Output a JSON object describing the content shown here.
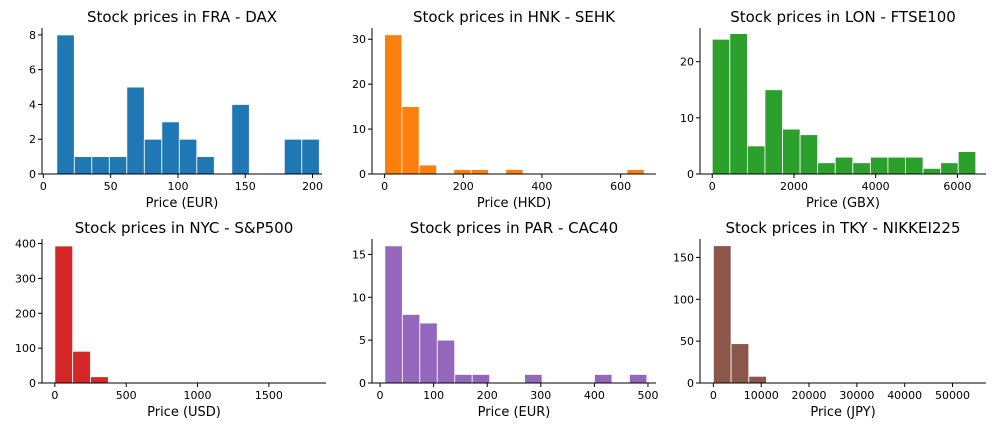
{
  "chart_data": [
    {
      "type": "bar",
      "title": "Stock prices in FRA - DAX",
      "xlabel": "Price (EUR)",
      "ylabel": "",
      "color": "#1f77b4",
      "xlim": [
        -1,
        207
      ],
      "ylim": [
        0,
        8.4
      ],
      "xticks": [
        0,
        50,
        100,
        150,
        200
      ],
      "yticks": [
        0,
        2,
        4,
        6,
        8
      ],
      "bins": [
        {
          "x0": 10,
          "x1": 23,
          "count": 8
        },
        {
          "x0": 23,
          "x1": 36,
          "count": 1
        },
        {
          "x0": 36,
          "x1": 49,
          "count": 1
        },
        {
          "x0": 49,
          "x1": 62,
          "count": 1
        },
        {
          "x0": 62,
          "x1": 75,
          "count": 5
        },
        {
          "x0": 75,
          "x1": 88,
          "count": 2
        },
        {
          "x0": 88,
          "x1": 101,
          "count": 3
        },
        {
          "x0": 101,
          "x1": 114,
          "count": 2
        },
        {
          "x0": 114,
          "x1": 127,
          "count": 1
        },
        {
          "x0": 127,
          "x1": 140,
          "count": 0
        },
        {
          "x0": 140,
          "x1": 153,
          "count": 4
        },
        {
          "x0": 153,
          "x1": 166,
          "count": 0
        },
        {
          "x0": 166,
          "x1": 179,
          "count": 0
        },
        {
          "x0": 179,
          "x1": 192,
          "count": 2
        },
        {
          "x0": 192,
          "x1": 205,
          "count": 2
        }
      ]
    },
    {
      "type": "bar",
      "title": "Stock prices in HNK - SEHK",
      "xlabel": "Price (HKD)",
      "ylabel": "",
      "color": "#ff7f0e",
      "xlim": [
        -32,
        690
      ],
      "ylim": [
        0,
        32.5
      ],
      "xticks": [
        0,
        200,
        400,
        600
      ],
      "yticks": [
        0,
        10,
        20,
        30
      ],
      "bins": [
        {
          "x0": 0,
          "x1": 44,
          "count": 31
        },
        {
          "x0": 44,
          "x1": 88,
          "count": 15
        },
        {
          "x0": 88,
          "x1": 132,
          "count": 2
        },
        {
          "x0": 132,
          "x1": 176,
          "count": 0
        },
        {
          "x0": 176,
          "x1": 220,
          "count": 1
        },
        {
          "x0": 220,
          "x1": 264,
          "count": 1
        },
        {
          "x0": 264,
          "x1": 308,
          "count": 0
        },
        {
          "x0": 308,
          "x1": 352,
          "count": 1
        },
        {
          "x0": 352,
          "x1": 396,
          "count": 0
        },
        {
          "x0": 396,
          "x1": 440,
          "count": 0
        },
        {
          "x0": 440,
          "x1": 484,
          "count": 0
        },
        {
          "x0": 484,
          "x1": 528,
          "count": 0
        },
        {
          "x0": 528,
          "x1": 572,
          "count": 0
        },
        {
          "x0": 572,
          "x1": 616,
          "count": 0
        },
        {
          "x0": 616,
          "x1": 660,
          "count": 1
        }
      ]
    },
    {
      "type": "bar",
      "title": "Stock prices in LON - FTSE100",
      "xlabel": "Price (GBX)",
      "ylabel": "",
      "color": "#2ca02c",
      "xlim": [
        -300,
        6700
      ],
      "ylim": [
        0,
        26
      ],
      "xticks": [
        0,
        2000,
        4000,
        6000
      ],
      "yticks": [
        0,
        10,
        20
      ],
      "bins": [
        {
          "x0": 0,
          "x1": 430,
          "count": 24
        },
        {
          "x0": 430,
          "x1": 860,
          "count": 25
        },
        {
          "x0": 860,
          "x1": 1290,
          "count": 5
        },
        {
          "x0": 1290,
          "x1": 1720,
          "count": 15
        },
        {
          "x0": 1720,
          "x1": 2150,
          "count": 8
        },
        {
          "x0": 2150,
          "x1": 2580,
          "count": 7
        },
        {
          "x0": 2580,
          "x1": 3010,
          "count": 2
        },
        {
          "x0": 3010,
          "x1": 3440,
          "count": 3
        },
        {
          "x0": 3440,
          "x1": 3870,
          "count": 2
        },
        {
          "x0": 3870,
          "x1": 4300,
          "count": 3
        },
        {
          "x0": 4300,
          "x1": 4730,
          "count": 3
        },
        {
          "x0": 4730,
          "x1": 5160,
          "count": 3
        },
        {
          "x0": 5160,
          "x1": 5590,
          "count": 1
        },
        {
          "x0": 5590,
          "x1": 6020,
          "count": 2
        },
        {
          "x0": 6020,
          "x1": 6450,
          "count": 4
        }
      ]
    },
    {
      "type": "bar",
      "title": "Stock prices in NYC - S&P500",
      "xlabel": "Price (USD)",
      "ylabel": "",
      "color": "#d62728",
      "xlim": [
        -90,
        1900
      ],
      "ylim": [
        0,
        413
      ],
      "xticks": [
        0,
        500,
        1000,
        1500
      ],
      "yticks": [
        0,
        100,
        200,
        300,
        400
      ],
      "bins": [
        {
          "x0": 0,
          "x1": 125,
          "count": 393
        },
        {
          "x0": 125,
          "x1": 250,
          "count": 91
        },
        {
          "x0": 250,
          "x1": 375,
          "count": 18
        },
        {
          "x0": 375,
          "x1": 500,
          "count": 1
        },
        {
          "x0": 500,
          "x1": 625,
          "count": 1
        },
        {
          "x0": 625,
          "x1": 750,
          "count": 1
        },
        {
          "x0": 750,
          "x1": 875,
          "count": 0
        },
        {
          "x0": 875,
          "x1": 1000,
          "count": 1
        },
        {
          "x0": 1000,
          "x1": 1125,
          "count": 0
        },
        {
          "x0": 1125,
          "x1": 1250,
          "count": 0
        },
        {
          "x0": 1250,
          "x1": 1375,
          "count": 0
        },
        {
          "x0": 1375,
          "x1": 1500,
          "count": 0
        },
        {
          "x0": 1500,
          "x1": 1625,
          "count": 0
        },
        {
          "x0": 1625,
          "x1": 1750,
          "count": 0
        },
        {
          "x0": 1750,
          "x1": 1875,
          "count": 1
        }
      ]
    },
    {
      "type": "bar",
      "title": "Stock prices in PAR - CAC40",
      "xlabel": "Price (EUR)",
      "ylabel": "",
      "color": "#9467bd",
      "xlim": [
        -15,
        515
      ],
      "ylim": [
        0,
        16.8
      ],
      "xticks": [
        0,
        100,
        200,
        300,
        400,
        500
      ],
      "yticks": [
        0,
        5,
        10,
        15
      ],
      "bins": [
        {
          "x0": 9,
          "x1": 41.6,
          "count": 16
        },
        {
          "x0": 41.6,
          "x1": 74.2,
          "count": 8
        },
        {
          "x0": 74.2,
          "x1": 106.8,
          "count": 7
        },
        {
          "x0": 106.8,
          "x1": 139.4,
          "count": 5
        },
        {
          "x0": 139.4,
          "x1": 172,
          "count": 1
        },
        {
          "x0": 172,
          "x1": 204.6,
          "count": 1
        },
        {
          "x0": 204.6,
          "x1": 237.2,
          "count": 0
        },
        {
          "x0": 237.2,
          "x1": 269.8,
          "count": 0
        },
        {
          "x0": 269.8,
          "x1": 302.4,
          "count": 1
        },
        {
          "x0": 302.4,
          "x1": 335,
          "count": 0
        },
        {
          "x0": 335,
          "x1": 367.6,
          "count": 0
        },
        {
          "x0": 367.6,
          "x1": 400.2,
          "count": 0
        },
        {
          "x0": 400.2,
          "x1": 432.8,
          "count": 1
        },
        {
          "x0": 432.8,
          "x1": 465.4,
          "count": 0
        },
        {
          "x0": 465.4,
          "x1": 498,
          "count": 1
        }
      ]
    },
    {
      "type": "bar",
      "title": "Stock prices in TKY - NIKKEI225",
      "xlabel": "Price (JPY)",
      "ylabel": "",
      "color": "#8c564b",
      "xlim": [
        -2800,
        57000
      ],
      "ylim": [
        0,
        172
      ],
      "xticks": [
        0,
        10000,
        20000,
        30000,
        40000,
        50000
      ],
      "yticks": [
        0,
        50,
        100,
        150
      ],
      "bins": [
        {
          "x0": 0,
          "x1": 3700,
          "count": 164
        },
        {
          "x0": 3700,
          "x1": 7400,
          "count": 47
        },
        {
          "x0": 7400,
          "x1": 11100,
          "count": 8
        },
        {
          "x0": 11100,
          "x1": 14800,
          "count": 1
        },
        {
          "x0": 14800,
          "x1": 18500,
          "count": 0
        },
        {
          "x0": 18500,
          "x1": 22200,
          "count": 0
        },
        {
          "x0": 22200,
          "x1": 25900,
          "count": 0
        },
        {
          "x0": 25900,
          "x1": 29600,
          "count": 0
        },
        {
          "x0": 29600,
          "x1": 33300,
          "count": 0
        },
        {
          "x0": 33300,
          "x1": 37000,
          "count": 0
        },
        {
          "x0": 37000,
          "x1": 40700,
          "count": 0
        },
        {
          "x0": 40700,
          "x1": 44400,
          "count": 0
        },
        {
          "x0": 44400,
          "x1": 48100,
          "count": 0
        },
        {
          "x0": 48100,
          "x1": 51800,
          "count": 0
        },
        {
          "x0": 51800,
          "x1": 55500,
          "count": 1
        }
      ]
    }
  ]
}
